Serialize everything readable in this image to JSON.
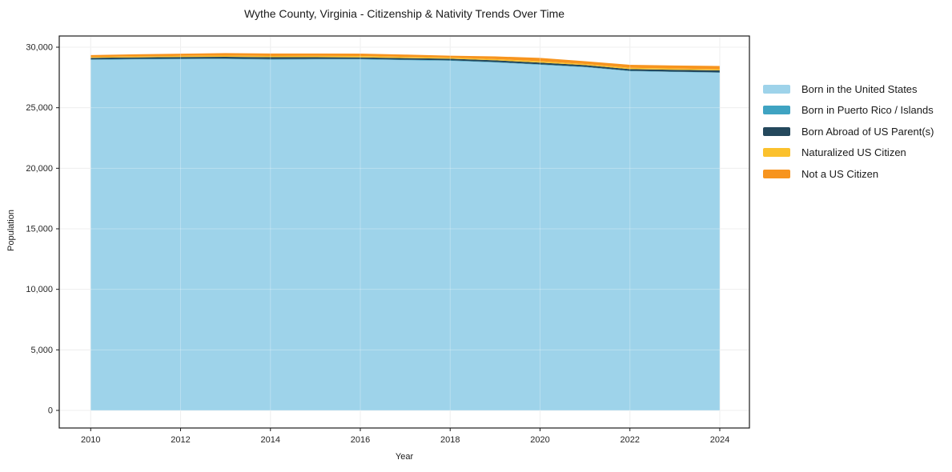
{
  "title": "Wythe County, Virginia - Citizenship & Nativity Trends Over Time",
  "chart_data": {
    "type": "area",
    "stacked": true,
    "title": "Wythe County, Virginia - Citizenship & Nativity Trends Over Time",
    "xlabel": "Year",
    "ylabel": "Population",
    "x": [
      2010,
      2011,
      2012,
      2013,
      2014,
      2015,
      2016,
      2017,
      2018,
      2019,
      2020,
      2021,
      2022,
      2023,
      2024
    ],
    "series": [
      {
        "name": "Born in the United States",
        "color": "#9ED3EA",
        "values": [
          28950,
          28990,
          29010,
          29020,
          28980,
          28990,
          28990,
          28930,
          28880,
          28740,
          28550,
          28350,
          28020,
          27950,
          27890
        ]
      },
      {
        "name": "Born in Puerto Rico / Islands",
        "color": "#3FA3C2",
        "values": [
          40,
          40,
          40,
          40,
          40,
          40,
          40,
          40,
          40,
          40,
          40,
          30,
          30,
          30,
          30
        ]
      },
      {
        "name": "Born Abroad of US Parent(s)",
        "color": "#24485C",
        "values": [
          130,
          130,
          140,
          150,
          150,
          140,
          130,
          130,
          130,
          140,
          140,
          140,
          140,
          150,
          165
        ]
      },
      {
        "name": "Naturalized US Citizen",
        "color": "#FBC12D",
        "values": [
          70,
          80,
          90,
          100,
          100,
          110,
          110,
          100,
          90,
          100,
          110,
          90,
          110,
          110,
          100
        ]
      },
      {
        "name": "Not a US Citizen",
        "color": "#F7941E",
        "values": [
          160,
          170,
          180,
          200,
          210,
          200,
          200,
          190,
          160,
          220,
          280,
          230,
          250,
          250,
          265
        ]
      }
    ],
    "xticks": {
      "values": [
        2010,
        2012,
        2014,
        2016,
        2018,
        2020,
        2022,
        2024
      ],
      "labels": [
        "2010",
        "2012",
        "2014",
        "2016",
        "2018",
        "2020",
        "2022",
        "2024"
      ]
    },
    "yticks": {
      "values": [
        0,
        5000,
        10000,
        15000,
        20000,
        25000,
        30000
      ],
      "labels": [
        "0",
        "5,000",
        "10,000",
        "15,000",
        "20,000",
        "25,000",
        "30,000"
      ]
    },
    "xlim": [
      2009.3,
      2024.66
    ],
    "ylim": [
      0,
      30000
    ],
    "grid": true,
    "legend_position": "right",
    "grid_color": "#e9e9e9",
    "spine_color": "#1a1a1a",
    "background_color": "#ffffff"
  }
}
